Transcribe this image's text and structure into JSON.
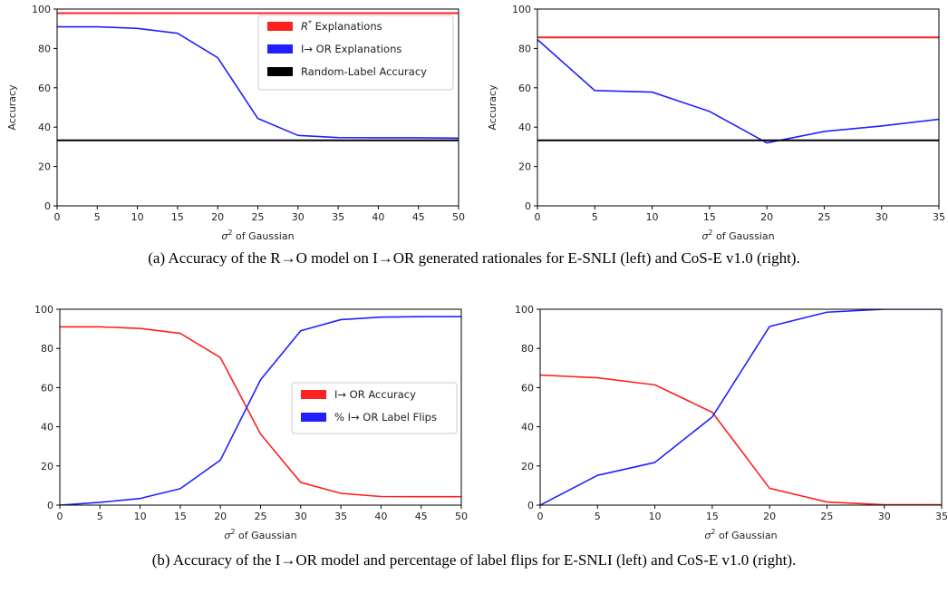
{
  "chart_data": [
    {
      "type": "line",
      "panel": "top-left",
      "xlabel": "σ² of Gaussian",
      "ylabel": "Accuracy",
      "xlim": [
        0,
        50
      ],
      "ylim": [
        0,
        100
      ],
      "xticks": [
        0,
        5,
        10,
        15,
        20,
        25,
        30,
        35,
        40,
        45,
        50
      ],
      "yticks": [
        0,
        20,
        40,
        60,
        80,
        100
      ],
      "legend_position": "top-right",
      "series": [
        {
          "name": "R* Explanations",
          "color": "#ff2020",
          "x": [
            0,
            50
          ],
          "y": [
            97.9,
            97.9
          ]
        },
        {
          "name": "I→ OR Explanations",
          "color": "#2020ff",
          "x": [
            0,
            5,
            10,
            15,
            20,
            25,
            30,
            35,
            40,
            45,
            50
          ],
          "y": [
            91,
            91,
            90.2,
            87.7,
            75.3,
            44.4,
            35.8,
            34.7,
            34.6,
            34.6,
            34.4
          ]
        },
        {
          "name": "Random-Label Accuracy",
          "color": "#000000",
          "x": [
            0,
            50
          ],
          "y": [
            33.3,
            33.3
          ]
        }
      ]
    },
    {
      "type": "line",
      "panel": "top-right",
      "xlabel": "σ² of Gaussian",
      "ylabel": "Accuracy",
      "xlim": [
        0,
        35
      ],
      "ylim": [
        0,
        100
      ],
      "xticks": [
        0,
        5,
        10,
        15,
        20,
        25,
        30,
        35
      ],
      "yticks": [
        0,
        20,
        40,
        60,
        80,
        100
      ],
      "series": [
        {
          "color": "#ff2020",
          "x": [
            0,
            35
          ],
          "y": [
            85.6,
            85.6
          ]
        },
        {
          "color": "#2020ff",
          "x": [
            0,
            5,
            10,
            15,
            20,
            25,
            30,
            35
          ],
          "y": [
            84.5,
            58.6,
            57.8,
            48.0,
            32.0,
            37.8,
            40.6,
            44.0
          ]
        },
        {
          "color": "#000000",
          "x": [
            0,
            35
          ],
          "y": [
            33.3,
            33.3
          ]
        }
      ]
    },
    {
      "type": "line",
      "panel": "bottom-left",
      "xlabel": "σ² of Gaussian",
      "ylabel": "",
      "xlim": [
        0,
        50
      ],
      "ylim": [
        0,
        100
      ],
      "xticks": [
        0,
        5,
        10,
        15,
        20,
        25,
        30,
        35,
        40,
        45,
        50
      ],
      "yticks": [
        0,
        20,
        40,
        60,
        80,
        100
      ],
      "legend_position": "center-right",
      "series": [
        {
          "name": "I→ OR Accuracy",
          "color": "#ff2020",
          "x": [
            0,
            5,
            10,
            15,
            20,
            25,
            30,
            35,
            40,
            45,
            50
          ],
          "y": [
            91,
            91,
            90.2,
            87.7,
            75.3,
            36.3,
            11.6,
            6.0,
            4.4,
            4.3,
            4.3
          ]
        },
        {
          "name": "% I→ OR Label Flips",
          "color": "#2020ff",
          "x": [
            0,
            5,
            10,
            15,
            20,
            25,
            30,
            35,
            40,
            45,
            50
          ],
          "y": [
            0,
            1.4,
            3.4,
            8.4,
            23.0,
            64.0,
            89.0,
            94.7,
            96.0,
            96.2,
            96.2
          ]
        }
      ]
    },
    {
      "type": "line",
      "panel": "bottom-right",
      "xlabel": "σ² of Gaussian",
      "ylabel": "",
      "xlim": [
        0,
        35
      ],
      "ylim": [
        0,
        100
      ],
      "xticks": [
        0,
        5,
        10,
        15,
        20,
        25,
        30,
        35
      ],
      "yticks": [
        0,
        20,
        40,
        60,
        80,
        100
      ],
      "series": [
        {
          "color": "#ff2020",
          "x": [
            0,
            5,
            10,
            15,
            20,
            25,
            30,
            35
          ],
          "y": [
            66.4,
            65.0,
            61.4,
            47.4,
            8.6,
            1.6,
            0.2,
            0.2
          ]
        },
        {
          "color": "#2020ff",
          "x": [
            0,
            5,
            10,
            15,
            20,
            25,
            30,
            35
          ],
          "y": [
            0,
            15.2,
            21.8,
            45.0,
            91.2,
            98.5,
            100,
            100
          ]
        }
      ]
    }
  ],
  "captions": {
    "a": "(a) Accuracy of the R→O model on I→OR generated rationales for E-SNLI (left) and CoS-E v1.0 (right).",
    "b": "(b) Accuracy of the I→OR model and percentage of label flips for E-SNLI (left) and CoS-E v1.0 (right)."
  }
}
